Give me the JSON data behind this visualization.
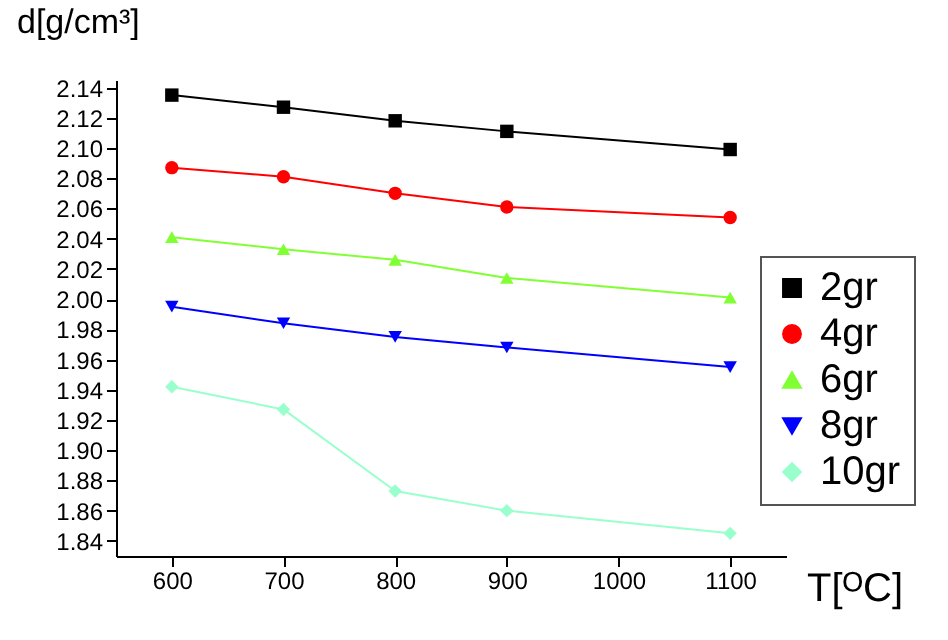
{
  "chart_data": {
    "type": "line",
    "xlabel": "T[ᴼC]",
    "ylabel": "d[g/cm³]",
    "series": [
      {
        "name": "2gr",
        "color": "#000000",
        "marker": "square",
        "x": [
          600,
          700,
          800,
          900,
          1100
        ],
        "values": [
          2.135,
          2.127,
          2.118,
          2.111,
          2.099
        ]
      },
      {
        "name": "4gr",
        "color": "#ff0000",
        "marker": "circle",
        "x": [
          600,
          700,
          800,
          900,
          1100
        ],
        "values": [
          2.087,
          2.081,
          2.07,
          2.061,
          2.054
        ]
      },
      {
        "name": "6gr",
        "color": "#80ff33",
        "marker": "triangle",
        "x": [
          600,
          700,
          800,
          900,
          1100
        ],
        "values": [
          2.041,
          2.033,
          2.026,
          2.014,
          2.001
        ]
      },
      {
        "name": "8gr",
        "color": "#0000ff",
        "marker": "triangle-down",
        "x": [
          600,
          700,
          800,
          900,
          1100
        ],
        "values": [
          1.995,
          1.984,
          1.975,
          1.968,
          1.955
        ]
      },
      {
        "name": "10gr",
        "color": "#99ffcc",
        "marker": "diamond",
        "x": [
          600,
          700,
          800,
          900,
          1100
        ],
        "values": [
          1.942,
          1.927,
          1.873,
          1.86,
          1.845
        ]
      }
    ],
    "xlim": [
      550,
      1150
    ],
    "xticks": [
      600,
      700,
      800,
      900,
      1000,
      1100
    ],
    "ylim": [
      1.83,
      2.145
    ],
    "yticks": [
      1.84,
      1.86,
      1.88,
      {
        "value": 1.9,
        "label": "1.90"
      },
      1.92,
      1.94,
      1.96,
      1.98,
      {
        "value": 2.0,
        "label": "2.00"
      },
      2.02,
      2.04,
      2.06,
      2.08,
      {
        "value": 2.1,
        "label": "2.10"
      },
      2.12,
      2.14
    ],
    "grid": false,
    "legend": "right"
  }
}
